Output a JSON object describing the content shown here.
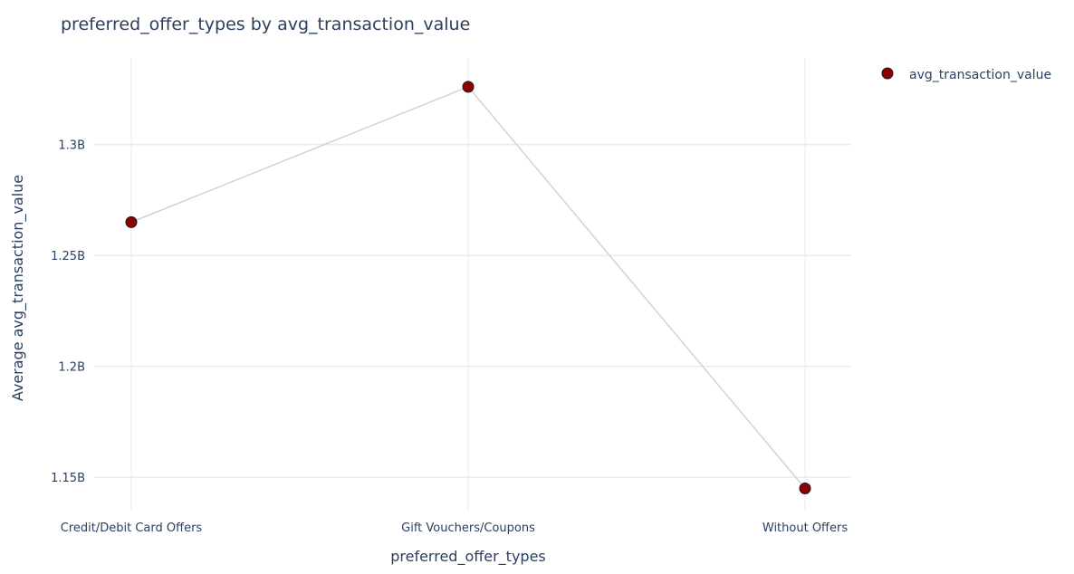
{
  "chart_data": {
    "type": "line",
    "title": "preferred_offer_types by avg_transaction_value",
    "xlabel": "preferred_offer_types",
    "ylabel": "Average avg_transaction_value",
    "categories": [
      "Credit/Debit Card Offers",
      "Gift Vouchers/Coupons",
      "Without Offers"
    ],
    "series": [
      {
        "name": "avg_transaction_value",
        "values": [
          1265000000,
          1326000000,
          1145000000
        ]
      }
    ],
    "ylim": [
      1135000000,
      1339000000
    ],
    "yticks": [
      1150000000,
      1200000000,
      1250000000,
      1300000000
    ],
    "ytick_labels": [
      "1.15B",
      "1.2B",
      "1.25B",
      "1.3B"
    ],
    "grid": true,
    "legend_position": "top-right",
    "colors": {
      "marker_fill": "#8b0000",
      "marker_stroke": "#1a1a1a",
      "line": "#d3d3d3",
      "grid": "#e5ecf6",
      "text": "#2a3f5f"
    }
  }
}
